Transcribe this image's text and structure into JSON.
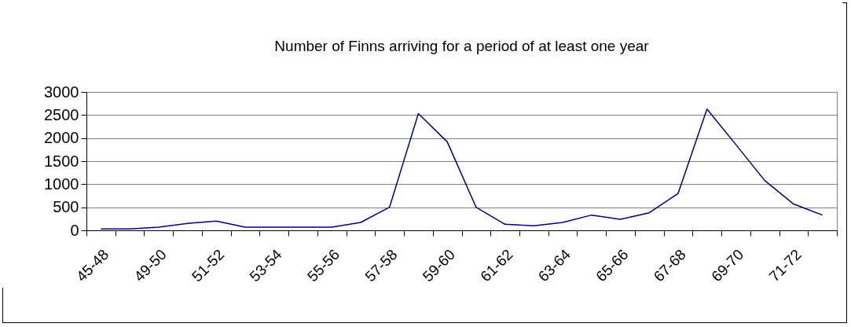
{
  "chart_data": {
    "type": "line",
    "title": "Number of Finns arriving for a period of at least one year",
    "categories": [
      "45-48",
      null,
      "49-50",
      null,
      "51-52",
      null,
      "53-54",
      null,
      "55-56",
      null,
      "57-58",
      null,
      "59-60",
      null,
      "61-62",
      null,
      "63-64",
      null,
      "65-66",
      null,
      "67-68",
      null,
      "69-70",
      null,
      "71-72",
      null
    ],
    "series": [
      {
        "color": "#000080",
        "values": [
          30,
          30,
          70,
          150,
          200,
          70,
          70,
          70,
          70,
          170,
          500,
          2530,
          1920,
          500,
          130,
          100,
          170,
          330,
          240,
          380,
          800,
          2630,
          1860,
          1080,
          570,
          330
        ]
      }
    ],
    "ylim": [
      0,
      3000
    ],
    "yticks": [
      0,
      500,
      1000,
      1500,
      2000,
      2500,
      3000
    ],
    "grid": "y"
  }
}
